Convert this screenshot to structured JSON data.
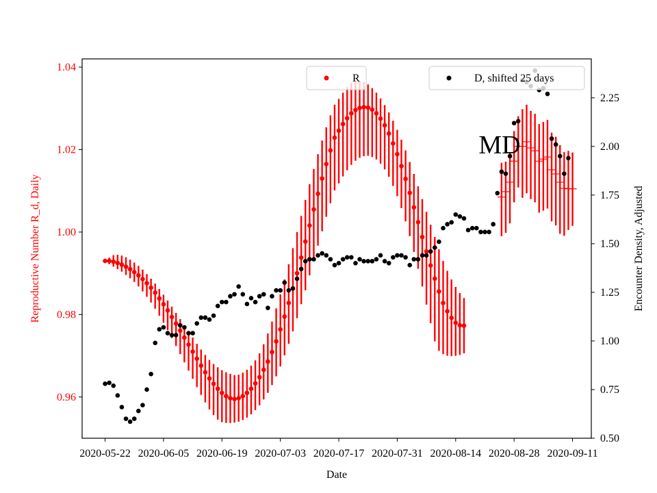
{
  "chart_data": {
    "type": "scatter",
    "xlabel": "Date",
    "ylabel_left": "Reproductive Number R_d, Daily",
    "ylabel_right": "Encounter Density, Adjusted",
    "annotation": "MD",
    "x_start": "2020-05-22",
    "x_ticks": [
      "2020-05-22",
      "2020-06-05",
      "2020-06-19",
      "2020-07-03",
      "2020-07-17",
      "2020-07-31",
      "2020-08-14",
      "2020-08-28",
      "2020-09-11"
    ],
    "x_tick_days": [
      0,
      14,
      28,
      42,
      56,
      70,
      84,
      98,
      112
    ],
    "xlim_days": [
      -5.5,
      116.5
    ],
    "ylim_left": [
      0.95,
      1.042
    ],
    "ylim_right": [
      0.5,
      2.45
    ],
    "yticks_left": [
      0.96,
      0.98,
      1.0,
      1.02,
      1.04
    ],
    "yticks_left_labels": [
      "0.96",
      "0.98",
      "1.00",
      "1.02",
      "1.04"
    ],
    "yticks_right": [
      0.5,
      0.75,
      1.0,
      1.25,
      1.5,
      1.75,
      2.0,
      2.25
    ],
    "yticks_right_labels": [
      "0.50",
      "0.75",
      "1.00",
      "1.25",
      "1.50",
      "1.75",
      "2.00",
      "2.25"
    ],
    "legend_R": "R",
    "legend_D": "D, shifted 25 days",
    "colors": {
      "R": "#ff0000",
      "D": "#000000",
      "left_axis": "#ff0000",
      "right_axis": "#000000"
    },
    "series": [
      {
        "name": "R",
        "axis": "left",
        "start_day": 0,
        "values": [
          0.993,
          0.993,
          0.9928,
          0.9925,
          0.9921,
          0.9916,
          0.991,
          0.9903,
          0.9895,
          0.9886,
          0.9876,
          0.9865,
          0.9853,
          0.9839,
          0.9825,
          0.981,
          0.9794,
          0.9778,
          0.9761,
          0.9744,
          0.9727,
          0.971,
          0.9693,
          0.9676,
          0.966,
          0.9645,
          0.9632,
          0.962,
          0.961,
          0.9602,
          0.9597,
          0.9595,
          0.9597,
          0.9602,
          0.961,
          0.962,
          0.9633,
          0.9648,
          0.9666,
          0.9686,
          0.9709,
          0.9735,
          0.9764,
          0.9795,
          0.9828,
          0.9863,
          0.99,
          0.9938,
          0.9977,
          1.0016,
          1.0055,
          1.0093,
          1.013,
          1.0165,
          1.0198,
          1.0229,
          1.0246,
          1.0262,
          1.0276,
          1.0288,
          1.0296,
          1.0301,
          1.0303,
          1.0302,
          1.0297,
          1.0288,
          1.0275,
          1.0259,
          1.0239,
          1.0215,
          1.0189,
          1.016,
          1.0129,
          1.0095,
          1.006,
          1.0024,
          0.9988,
          0.9953,
          0.9919,
          0.9887,
          0.9856,
          0.9828,
          0.9808,
          0.9792,
          0.978,
          0.9774,
          0.9773
        ],
        "err_low": [
          0.993,
          0.9922,
          0.9916,
          0.991,
          0.9904,
          0.9896,
          0.9888,
          0.9879,
          0.9868,
          0.9856,
          0.9843,
          0.9829,
          0.9814,
          0.9797,
          0.978,
          0.9762,
          0.9743,
          0.9724,
          0.9704,
          0.9684,
          0.9664,
          0.9644,
          0.9624,
          0.9605,
          0.9587,
          0.957,
          0.9556,
          0.9545,
          0.9539,
          0.9537,
          0.9537,
          0.9538,
          0.954,
          0.9544,
          0.955,
          0.9558,
          0.9568,
          0.958,
          0.9594,
          0.961,
          0.9629,
          0.965,
          0.9674,
          0.9701,
          0.9729,
          0.9759,
          0.9791,
          0.9825,
          0.9859,
          0.9895,
          0.9931,
          0.9967,
          1.0002,
          1.0037,
          1.007,
          1.0101,
          1.0118,
          1.0135,
          1.015,
          1.0163,
          1.0173,
          1.018,
          1.0184,
          1.0185,
          1.0182,
          1.0176,
          1.0166,
          1.0152,
          1.0134,
          1.0112,
          1.0087,
          1.0058,
          1.0026,
          0.999,
          0.9952,
          0.9911,
          0.9868,
          0.9824,
          0.9779,
          0.9735,
          0.9712,
          0.9704,
          0.97,
          0.9699,
          0.97,
          0.9702,
          0.9706
        ],
        "err_high": [
          0.993,
          0.9938,
          0.9944,
          0.9945,
          0.9943,
          0.9939,
          0.9933,
          0.9926,
          0.9918,
          0.9909,
          0.9898,
          0.9887,
          0.9875,
          0.9862,
          0.9848,
          0.9834,
          0.9819,
          0.9804,
          0.9789,
          0.9774,
          0.9759,
          0.9744,
          0.9729,
          0.9715,
          0.9702,
          0.969,
          0.968,
          0.9672,
          0.9665,
          0.966,
          0.9656,
          0.9653,
          0.9654,
          0.9659,
          0.9666,
          0.9676,
          0.9689,
          0.9706,
          0.9728,
          0.9754,
          0.9783,
          0.9815,
          0.9849,
          0.9885,
          0.9922,
          0.9961,
          1.0,
          1.0039,
          1.0078,
          1.0116,
          1.0153,
          1.0189,
          1.0222,
          1.0254,
          1.0283,
          1.0309,
          1.0323,
          1.0338,
          1.0352,
          1.0362,
          1.0367,
          1.0367,
          1.0364,
          1.0358,
          1.0349,
          1.0338,
          1.0324,
          1.0308,
          1.029,
          1.027,
          1.0248,
          1.0224,
          1.0198,
          1.017,
          1.0141,
          1.0111,
          1.008,
          1.0049,
          1.0018,
          0.9988,
          0.9958,
          0.993,
          0.9906,
          0.9885,
          0.9867,
          0.9852,
          0.984
        ]
      },
      {
        "name": "R_tail",
        "axis": "left",
        "start_day": 95,
        "values": [
          1.0085,
          1.0098,
          1.0121,
          1.0172,
          1.0208,
          1.0208,
          1.0219,
          1.0204,
          1.0197,
          1.0172,
          1.0177,
          1.0182,
          1.0151,
          1.0141,
          1.0121,
          1.0106,
          1.0105,
          1.0105
        ],
        "err_low": [
          0.999,
          0.9998,
          1.0021,
          1.0072,
          1.0108,
          1.0083,
          1.0094,
          1.008,
          1.0072,
          1.0047,
          1.0052,
          1.0057,
          1.0026,
          1.0016,
          0.9996,
          0.9991,
          1.0005,
          1.0015
        ],
        "err_high": [
          1.0168,
          1.0171,
          1.0194,
          1.0245,
          1.0281,
          1.0298,
          1.0309,
          1.0294,
          1.0287,
          1.0262,
          1.0267,
          1.0272,
          1.0241,
          1.0231,
          1.0211,
          1.0194,
          1.0197,
          1.0193
        ]
      },
      {
        "name": "D, shifted 25 days",
        "axis": "right",
        "points": [
          [
            0,
            0.78
          ],
          [
            1,
            0.785
          ],
          [
            2,
            0.77
          ],
          [
            3,
            0.72
          ],
          [
            4,
            0.66
          ],
          [
            5,
            0.6
          ],
          [
            6,
            0.585
          ],
          [
            7,
            0.6
          ],
          [
            8,
            0.64
          ],
          [
            9,
            0.67
          ],
          [
            10,
            0.75
          ],
          [
            11,
            0.83
          ],
          [
            12,
            0.99
          ],
          [
            13,
            1.06
          ],
          [
            14,
            1.07
          ],
          [
            15,
            1.04
          ],
          [
            16,
            1.03
          ],
          [
            17,
            1.03
          ],
          [
            18,
            1.08
          ],
          [
            19,
            1.07
          ],
          [
            20,
            1.04
          ],
          [
            21,
            1.04
          ],
          [
            22,
            1.09
          ],
          [
            23,
            1.12
          ],
          [
            24,
            1.12
          ],
          [
            25,
            1.11
          ],
          [
            26,
            1.13
          ],
          [
            27,
            1.18
          ],
          [
            28,
            1.2
          ],
          [
            29,
            1.2
          ],
          [
            30,
            1.23
          ],
          [
            31,
            1.24
          ],
          [
            32,
            1.28
          ],
          [
            33,
            1.24
          ],
          [
            34,
            1.19
          ],
          [
            35,
            1.22
          ],
          [
            36,
            1.2
          ],
          [
            37,
            1.23
          ],
          [
            38,
            1.24
          ],
          [
            39,
            1.17
          ],
          [
            40,
            1.23
          ],
          [
            41,
            1.26
          ],
          [
            42,
            1.26
          ],
          [
            43,
            1.3
          ],
          [
            44,
            1.26
          ],
          [
            45,
            1.27
          ],
          [
            46,
            1.32
          ],
          [
            47,
            1.37
          ],
          [
            48,
            1.41
          ],
          [
            49,
            1.42
          ],
          [
            50,
            1.42
          ],
          [
            51,
            1.44
          ],
          [
            52,
            1.45
          ],
          [
            53,
            1.44
          ],
          [
            54,
            1.42
          ],
          [
            55,
            1.39
          ],
          [
            56,
            1.4
          ],
          [
            57,
            1.42
          ],
          [
            58,
            1.43
          ],
          [
            59,
            1.43
          ],
          [
            60,
            1.4
          ],
          [
            61,
            1.42
          ],
          [
            62,
            1.41
          ],
          [
            63,
            1.41
          ],
          [
            64,
            1.41
          ],
          [
            65,
            1.42
          ],
          [
            66,
            1.44
          ],
          [
            67,
            1.41
          ],
          [
            68,
            1.4
          ],
          [
            69,
            1.43
          ],
          [
            70,
            1.44
          ],
          [
            71,
            1.44
          ],
          [
            72,
            1.43
          ],
          [
            73,
            1.39
          ],
          [
            74,
            1.42
          ],
          [
            75,
            1.42
          ],
          [
            76,
            1.44
          ],
          [
            77,
            1.44
          ],
          [
            78,
            1.46
          ],
          [
            79,
            1.48
          ],
          [
            80,
            1.51
          ],
          [
            81,
            1.58
          ],
          [
            82,
            1.6
          ],
          [
            83,
            1.61
          ],
          [
            84,
            1.65
          ],
          [
            85,
            1.64
          ],
          [
            86,
            1.63
          ],
          [
            87,
            1.57
          ],
          [
            88,
            1.58
          ],
          [
            89,
            1.58
          ],
          [
            90,
            1.56
          ],
          [
            91,
            1.56
          ],
          [
            92,
            1.56
          ],
          [
            93,
            1.6
          ],
          [
            94,
            1.76
          ],
          [
            95,
            1.87
          ],
          [
            96,
            1.86
          ],
          [
            97,
            1.95
          ],
          [
            98,
            2.12
          ],
          [
            99,
            2.13
          ],
          [
            100,
            2.34
          ],
          [
            101,
            2.33
          ],
          [
            102,
            2.31
          ],
          [
            103,
            2.39
          ],
          [
            104,
            2.29
          ],
          [
            105,
            2.3
          ],
          [
            106,
            2.27
          ],
          [
            107,
            2.04
          ],
          [
            108,
            2.01
          ],
          [
            109,
            1.95
          ],
          [
            110,
            1.86
          ],
          [
            111,
            1.94
          ]
        ]
      }
    ]
  }
}
